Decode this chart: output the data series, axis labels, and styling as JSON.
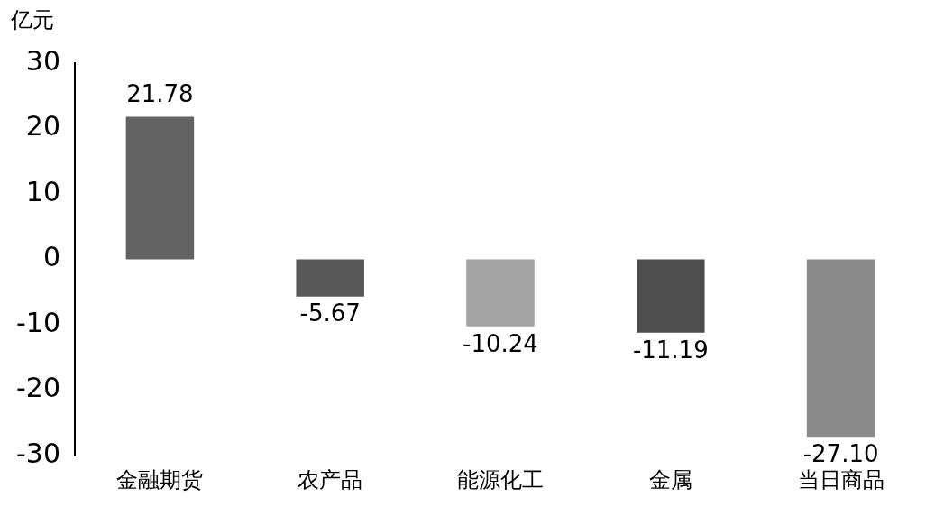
{
  "chart_data": {
    "type": "bar",
    "ylabel": "亿元",
    "categories": [
      "金融期货",
      "农产品",
      "能源化工",
      "金属",
      "当日商品"
    ],
    "values": [
      21.78,
      -5.67,
      -10.24,
      -11.19,
      -27.1
    ],
    "colors": [
      "#636363",
      "#585858",
      "#a3a3a3",
      "#4d4d4d",
      "#8a8a8a"
    ],
    "value_labels": [
      "21.78",
      "-5.67",
      "-10.24",
      "-11.19",
      "-27.10"
    ],
    "ylim": [
      -30,
      30
    ],
    "yticks": [
      -30,
      -20,
      -10,
      0,
      10,
      20,
      30
    ],
    "grid": false,
    "legend": false
  }
}
